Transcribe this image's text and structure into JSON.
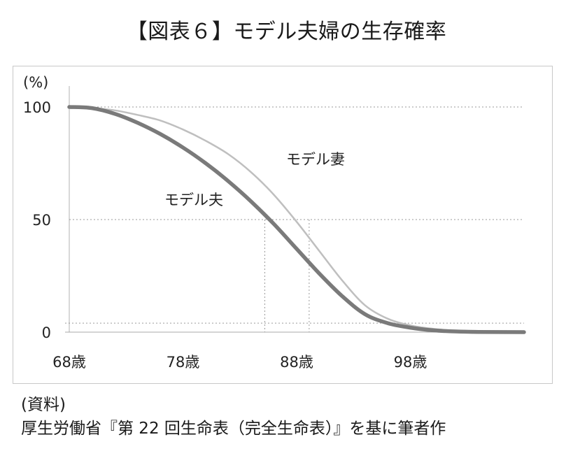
{
  "title": "【図表６】モデル夫婦の生存確率",
  "footer": {
    "source_label": "(資料)",
    "source_text": "厚生労働省『第 22 回生命表（完全生命表）』を基に筆者作"
  },
  "chart_data": {
    "type": "line",
    "ylabel": "(%)",
    "xlabel": "",
    "ylim": [
      0,
      100
    ],
    "xlim": [
      68,
      108
    ],
    "y_ticks": [
      "0",
      "50",
      "100"
    ],
    "x_ticks": [
      "68歳",
      "78歳",
      "88歳",
      "98歳"
    ],
    "x_tick_values": [
      68,
      78,
      88,
      98
    ],
    "grid": "dotted horizontal at 50 and 100",
    "colors": {
      "husband": "#7a7a7a",
      "wife": "#bfbfbf",
      "grid": "#9a9a9a"
    },
    "x": [
      68,
      70,
      72,
      74,
      76,
      78,
      80,
      82,
      84,
      86,
      88,
      90,
      92,
      94,
      96,
      98,
      100,
      102,
      104,
      108
    ],
    "series": [
      {
        "name": "モデル夫",
        "values": [
          100,
          99.5,
          97,
          93,
          88,
          82,
          75,
          67,
          58,
          48,
          37,
          26,
          16,
          8,
          4,
          2,
          0.8,
          0.3,
          0.1,
          0
        ]
      },
      {
        "name": "モデル妻",
        "values": [
          100,
          99.5,
          98.5,
          96.5,
          94,
          90,
          85,
          79,
          71,
          61,
          49,
          36,
          23,
          12,
          6,
          3,
          1.5,
          0.6,
          0.2,
          0
        ]
      }
    ],
    "reference_lines_x": [
      85.2,
      89.1
    ],
    "baseline_y": 4
  }
}
